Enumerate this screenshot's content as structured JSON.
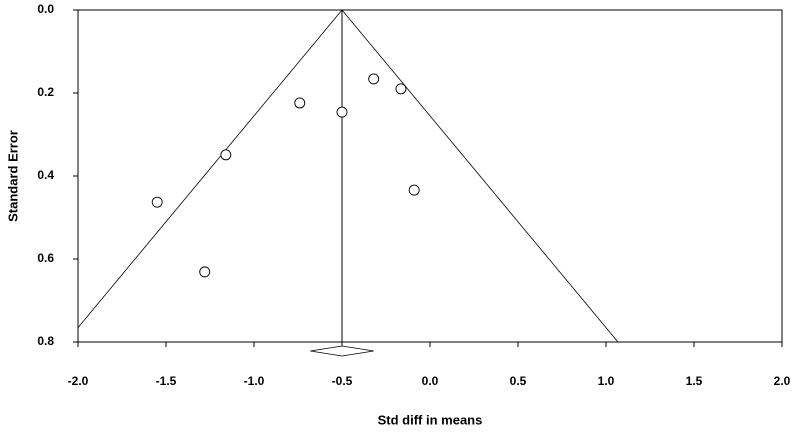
{
  "chart_data": {
    "type": "scatter",
    "x_label": "Std diff in means",
    "y_label": "Standard Error",
    "x": [
      -1.55,
      -1.28,
      -1.16,
      -0.74,
      -0.5,
      -0.32,
      -0.165,
      -0.09
    ],
    "values": [
      0.463,
      0.631,
      0.349,
      0.224,
      0.246,
      0.166,
      0.19,
      0.434
    ],
    "color": "#000000",
    "xlim": [
      -2,
      2
    ],
    "xticks": [
      {
        "value": -2,
        "label": "-2.0"
      },
      -1.5,
      {
        "value": -1,
        "label": "-1.0"
      },
      -0.5,
      {
        "value": 0,
        "label": "0.0"
      },
      0.5,
      {
        "value": 1,
        "label": "1.0"
      },
      1.5,
      {
        "value": 2,
        "label": "2.0"
      }
    ],
    "ylim": [
      0,
      0.8
    ],
    "yticks": [
      {
        "value": 0,
        "label": "0.0"
      },
      0.2,
      0.4,
      0.6,
      0.8
    ],
    "y_inverted": true,
    "grid": false,
    "pooled_estimate": -0.5,
    "pooled_ci": [
      -0.68,
      -0.32
    ],
    "funnel_z": 1.96
  }
}
